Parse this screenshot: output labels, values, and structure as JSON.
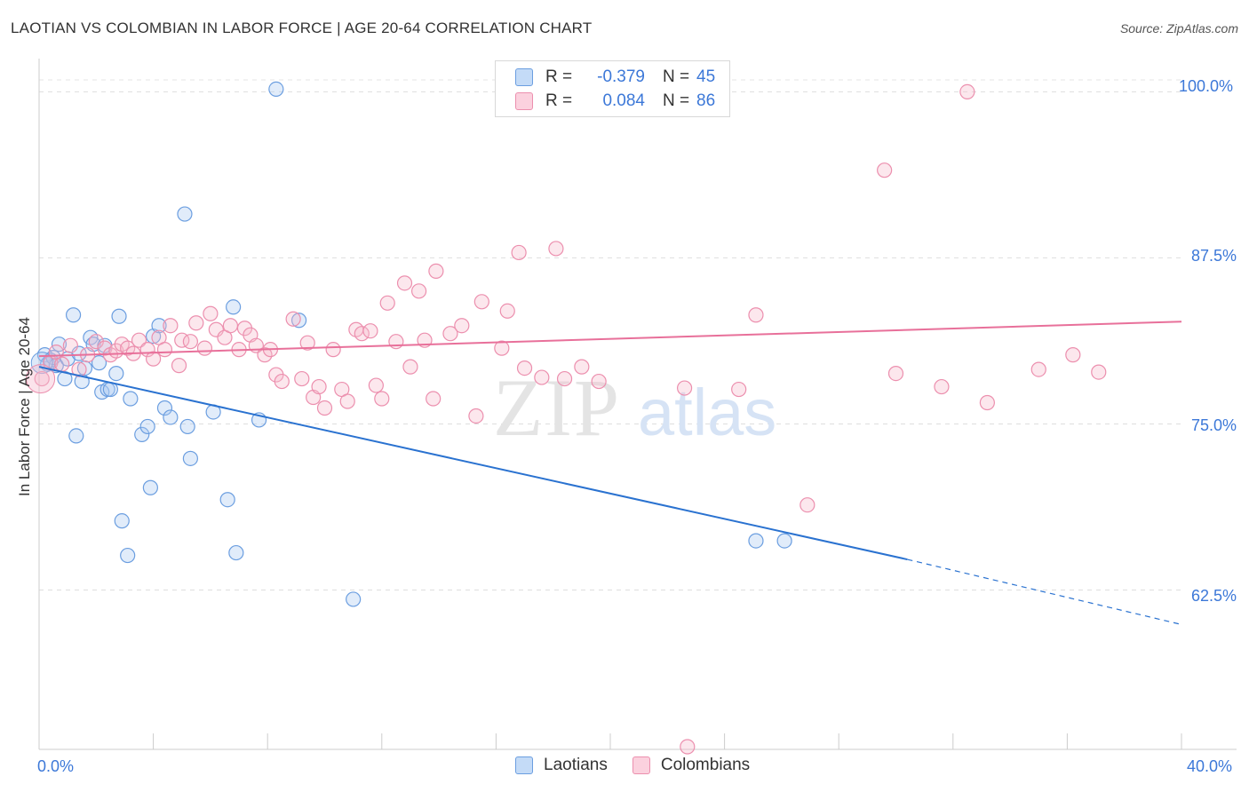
{
  "title": "LAOTIAN VS COLOMBIAN IN LABOR FORCE | AGE 20-64 CORRELATION CHART",
  "source": "Source: ZipAtlas.com",
  "colors": {
    "laotians_fill": "#a9c8f0",
    "laotians_stroke": "#6b9ee0",
    "laotians_line": "#2a72d0",
    "colombians_fill": "#f6b9cc",
    "colombians_stroke": "#ec8fae",
    "colombians_line": "#e8709a",
    "value_text": "#3c78d8"
  },
  "legend": {
    "rows": [
      {
        "r_label": "R =",
        "r_value": "-0.379",
        "n_label": "N =",
        "n_value": "45"
      },
      {
        "r_label": "R =",
        "r_value": "0.084",
        "n_label": "N =",
        "n_value": "86"
      }
    ]
  },
  "bottom_legend": [
    "Laotians",
    "Colombians"
  ],
  "chart_data": {
    "type": "scatter",
    "title": "LAOTIAN VS COLOMBIAN IN LABOR FORCE | AGE 20-64 CORRELATION CHART",
    "xlabel": "",
    "ylabel": "In Labor Force | Age 20-64",
    "xlim": [
      0,
      40
    ],
    "ylim": [
      50.5,
      102.5
    ],
    "x_tick_labels": [
      "0.0%",
      "40.0%"
    ],
    "y_ticks": [
      62.5,
      75.0,
      87.5,
      100.0
    ],
    "y_tick_labels": [
      "62.5%",
      "75.0%",
      "87.5%",
      "100.0%"
    ],
    "grid": true,
    "legend_position": "top-center",
    "series": [
      {
        "name": "Laotians",
        "r": -0.379,
        "n": 45,
        "trend": {
          "x0": 0,
          "y0": 79.3,
          "x1": 30.4,
          "y1": 64.8,
          "dashed_to_x": 40,
          "dashed_to_y": 59.9
        },
        "points": [
          [
            0.2,
            80.2
          ],
          [
            0.3,
            79.5
          ],
          [
            0.4,
            79.8
          ],
          [
            0.5,
            80.0
          ],
          [
            0.6,
            79.4
          ],
          [
            0.7,
            81.0
          ],
          [
            0.9,
            78.4
          ],
          [
            1.0,
            79.9
          ],
          [
            1.2,
            83.2
          ],
          [
            1.3,
            74.1
          ],
          [
            1.4,
            80.3
          ],
          [
            1.5,
            78.2
          ],
          [
            1.6,
            79.2
          ],
          [
            1.8,
            81.5
          ],
          [
            1.9,
            81.0
          ],
          [
            2.1,
            79.6
          ],
          [
            2.2,
            77.4
          ],
          [
            2.3,
            80.9
          ],
          [
            2.4,
            77.6
          ],
          [
            2.5,
            77.6
          ],
          [
            2.7,
            78.8
          ],
          [
            2.8,
            83.1
          ],
          [
            2.9,
            67.7
          ],
          [
            3.1,
            65.1
          ],
          [
            3.2,
            76.9
          ],
          [
            3.6,
            74.2
          ],
          [
            3.8,
            74.8
          ],
          [
            3.9,
            70.2
          ],
          [
            4.0,
            81.6
          ],
          [
            4.2,
            82.4
          ],
          [
            4.4,
            76.2
          ],
          [
            4.6,
            75.5
          ],
          [
            5.1,
            90.8
          ],
          [
            5.2,
            74.8
          ],
          [
            5.3,
            72.4
          ],
          [
            6.1,
            75.9
          ],
          [
            6.6,
            69.3
          ],
          [
            6.8,
            83.8
          ],
          [
            6.9,
            65.3
          ],
          [
            7.7,
            75.3
          ],
          [
            8.3,
            100.2
          ],
          [
            9.1,
            82.8
          ],
          [
            11.0,
            61.8
          ],
          [
            25.1,
            66.2
          ],
          [
            26.1,
            66.2
          ]
        ]
      },
      {
        "name": "Colombians",
        "r": 0.084,
        "n": 86,
        "trend": {
          "x0": 0,
          "y0": 80.1,
          "x1": 40,
          "y1": 82.7
        },
        "points": [
          [
            0.1,
            78.4
          ],
          [
            0.4,
            79.6
          ],
          [
            0.6,
            80.4
          ],
          [
            0.8,
            79.5
          ],
          [
            1.1,
            80.9
          ],
          [
            1.4,
            79.1
          ],
          [
            1.7,
            80.2
          ],
          [
            2.0,
            81.2
          ],
          [
            2.3,
            80.7
          ],
          [
            2.5,
            80.2
          ],
          [
            2.7,
            80.5
          ],
          [
            2.9,
            81.0
          ],
          [
            3.1,
            80.7
          ],
          [
            3.3,
            80.3
          ],
          [
            3.5,
            81.3
          ],
          [
            3.8,
            80.6
          ],
          [
            4.0,
            79.9
          ],
          [
            4.2,
            81.5
          ],
          [
            4.4,
            80.6
          ],
          [
            4.6,
            82.4
          ],
          [
            4.9,
            79.4
          ],
          [
            5.0,
            81.3
          ],
          [
            5.3,
            81.2
          ],
          [
            5.5,
            82.6
          ],
          [
            5.8,
            80.7
          ],
          [
            6.0,
            83.3
          ],
          [
            6.2,
            82.1
          ],
          [
            6.5,
            81.5
          ],
          [
            6.7,
            82.4
          ],
          [
            7.0,
            80.6
          ],
          [
            7.2,
            82.2
          ],
          [
            7.4,
            81.7
          ],
          [
            7.6,
            80.9
          ],
          [
            7.9,
            80.2
          ],
          [
            8.1,
            80.6
          ],
          [
            8.3,
            78.7
          ],
          [
            8.5,
            78.2
          ],
          [
            8.9,
            82.9
          ],
          [
            9.2,
            78.4
          ],
          [
            9.4,
            81.1
          ],
          [
            9.6,
            77.0
          ],
          [
            9.8,
            77.8
          ],
          [
            10.0,
            76.2
          ],
          [
            10.3,
            80.6
          ],
          [
            10.6,
            77.6
          ],
          [
            10.8,
            76.7
          ],
          [
            11.1,
            82.1
          ],
          [
            11.3,
            81.8
          ],
          [
            11.6,
            82.0
          ],
          [
            11.8,
            77.9
          ],
          [
            12.0,
            76.9
          ],
          [
            12.2,
            84.1
          ],
          [
            12.5,
            81.2
          ],
          [
            12.8,
            85.6
          ],
          [
            13.0,
            79.3
          ],
          [
            13.3,
            85.0
          ],
          [
            13.5,
            81.3
          ],
          [
            13.8,
            76.9
          ],
          [
            13.9,
            86.5
          ],
          [
            14.4,
            81.8
          ],
          [
            14.8,
            82.4
          ],
          [
            15.3,
            75.6
          ],
          [
            15.5,
            84.2
          ],
          [
            16.2,
            80.7
          ],
          [
            16.4,
            83.5
          ],
          [
            16.8,
            87.9
          ],
          [
            17.0,
            79.2
          ],
          [
            17.6,
            78.5
          ],
          [
            18.1,
            88.2
          ],
          [
            18.4,
            78.4
          ],
          [
            19.0,
            79.3
          ],
          [
            19.6,
            78.2
          ],
          [
            20.4,
            100.0
          ],
          [
            22.6,
            77.7
          ],
          [
            22.7,
            50.7
          ],
          [
            24.5,
            77.6
          ],
          [
            25.1,
            83.2
          ],
          [
            26.9,
            68.9
          ],
          [
            29.6,
            94.1
          ],
          [
            30.0,
            78.8
          ],
          [
            31.6,
            77.8
          ],
          [
            32.5,
            100.0
          ],
          [
            33.2,
            76.6
          ],
          [
            35.0,
            79.1
          ],
          [
            36.2,
            80.2
          ],
          [
            37.1,
            78.9
          ]
        ]
      }
    ]
  }
}
